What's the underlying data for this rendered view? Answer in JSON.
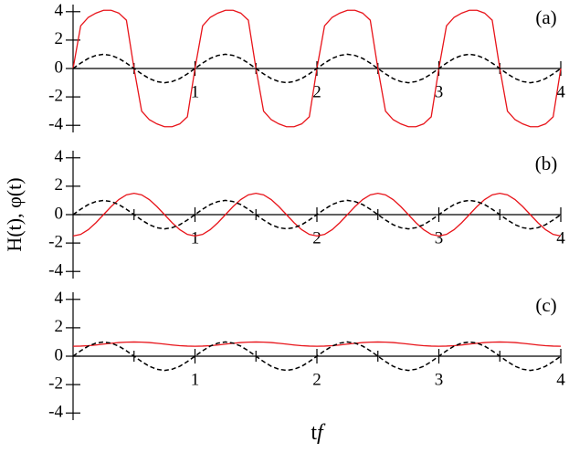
{
  "figure": {
    "ylabel": "H(t), φ(t)",
    "xlabel": [
      "t",
      "f"
    ]
  },
  "chart_data": [
    {
      "type": "line",
      "panel_label": "(a)",
      "x": [
        0,
        0.0625,
        0.125,
        0.1875,
        0.25,
        0.3125,
        0.375,
        0.4375,
        0.5,
        0.5625,
        0.625,
        0.6875,
        0.75,
        0.8125,
        0.875,
        0.9375,
        1,
        1.0625,
        1.125,
        1.1875,
        1.25,
        1.3125,
        1.375,
        1.4375,
        1.5,
        1.5625,
        1.625,
        1.6875,
        1.75,
        1.8125,
        1.875,
        1.9375,
        2,
        2.0625,
        2.125,
        2.1875,
        2.25,
        2.3125,
        2.375,
        2.4375,
        2.5,
        2.5625,
        2.625,
        2.6875,
        2.75,
        2.8125,
        2.875,
        2.9375,
        3,
        3.0625,
        3.125,
        3.1875,
        3.25,
        3.3125,
        3.375,
        3.4375,
        3.5,
        3.5625,
        3.625,
        3.6875,
        3.75,
        3.8125,
        3.875,
        3.9375,
        4
      ],
      "series": [
        {
          "color": "#e8141a",
          "dash": false,
          "values": [
            0,
            3.0,
            3.6,
            3.9,
            4.1,
            4.1,
            3.9,
            3.4,
            0,
            -3.0,
            -3.6,
            -3.9,
            -4.1,
            -4.1,
            -3.9,
            -3.4,
            0,
            3.0,
            3.6,
            3.9,
            4.1,
            4.1,
            3.9,
            3.4,
            0,
            -3.0,
            -3.6,
            -3.9,
            -4.1,
            -4.1,
            -3.9,
            -3.4,
            0,
            3.0,
            3.6,
            3.9,
            4.1,
            4.1,
            3.9,
            3.4,
            0,
            -3.0,
            -3.6,
            -3.9,
            -4.1,
            -4.1,
            -3.9,
            -3.4,
            0,
            3.0,
            3.6,
            3.9,
            4.1,
            4.1,
            3.9,
            3.4,
            0,
            -3.0,
            -3.6,
            -3.9,
            -4.1,
            -4.1,
            -3.9,
            -3.4,
            0
          ]
        },
        {
          "color": "#000000",
          "dash": true,
          "values": [
            0,
            0.38,
            0.71,
            0.92,
            1,
            0.92,
            0.71,
            0.38,
            0,
            -0.38,
            -0.71,
            -0.92,
            -1,
            -0.92,
            -0.71,
            -0.38,
            0,
            0.38,
            0.71,
            0.92,
            1,
            0.92,
            0.71,
            0.38,
            0,
            -0.38,
            -0.71,
            -0.92,
            -1,
            -0.92,
            -0.71,
            -0.38,
            0,
            0.38,
            0.71,
            0.92,
            1,
            0.92,
            0.71,
            0.38,
            0,
            -0.38,
            -0.71,
            -0.92,
            -1,
            -0.92,
            -0.71,
            -0.38,
            0,
            0.38,
            0.71,
            0.92,
            1,
            0.92,
            0.71,
            0.38,
            0,
            -0.38,
            -0.71,
            -0.92,
            -1,
            -0.92,
            -0.71,
            -0.38,
            0
          ]
        }
      ],
      "xlim": [
        0,
        4
      ],
      "xticks": [
        1,
        2,
        3,
        4
      ],
      "xminorticks": [
        0.5,
        1.5,
        2.5,
        3.5
      ],
      "ylim": [
        -4.5,
        4.5
      ],
      "yticks": [
        -4,
        -2,
        0,
        2,
        4
      ]
    },
    {
      "type": "line",
      "panel_label": "(b)",
      "x": [
        0,
        0.0625,
        0.125,
        0.1875,
        0.25,
        0.3125,
        0.375,
        0.4375,
        0.5,
        0.5625,
        0.625,
        0.6875,
        0.75,
        0.8125,
        0.875,
        0.9375,
        1,
        1.0625,
        1.125,
        1.1875,
        1.25,
        1.3125,
        1.375,
        1.4375,
        1.5,
        1.5625,
        1.625,
        1.6875,
        1.75,
        1.8125,
        1.875,
        1.9375,
        2,
        2.0625,
        2.125,
        2.1875,
        2.25,
        2.3125,
        2.375,
        2.4375,
        2.5,
        2.5625,
        2.625,
        2.6875,
        2.75,
        2.8125,
        2.875,
        2.9375,
        3,
        3.0625,
        3.125,
        3.1875,
        3.25,
        3.3125,
        3.375,
        3.4375,
        3.5,
        3.5625,
        3.625,
        3.6875,
        3.75,
        3.8125,
        3.875,
        3.9375,
        4
      ],
      "series": [
        {
          "color": "#e8141a",
          "dash": false,
          "values": [
            -1.5,
            -1.39,
            -1.06,
            -0.57,
            0,
            0.57,
            1.06,
            1.39,
            1.5,
            1.39,
            1.06,
            0.57,
            0,
            -0.57,
            -1.06,
            -1.39,
            -1.5,
            -1.39,
            -1.06,
            -0.57,
            0,
            0.57,
            1.06,
            1.39,
            1.5,
            1.39,
            1.06,
            0.57,
            0,
            -0.57,
            -1.06,
            -1.39,
            -1.5,
            -1.39,
            -1.06,
            -0.57,
            0,
            0.57,
            1.06,
            1.39,
            1.5,
            1.39,
            1.06,
            0.57,
            0,
            -0.57,
            -1.06,
            -1.39,
            -1.5,
            -1.39,
            -1.06,
            -0.57,
            0,
            0.57,
            1.06,
            1.39,
            1.5,
            1.39,
            1.06,
            0.57,
            0,
            -0.57,
            -1.06,
            -1.39,
            -1.5
          ]
        },
        {
          "color": "#000000",
          "dash": true,
          "values": [
            0,
            0.38,
            0.71,
            0.92,
            1,
            0.92,
            0.71,
            0.38,
            0,
            -0.38,
            -0.71,
            -0.92,
            -1,
            -0.92,
            -0.71,
            -0.38,
            0,
            0.38,
            0.71,
            0.92,
            1,
            0.92,
            0.71,
            0.38,
            0,
            -0.38,
            -0.71,
            -0.92,
            -1,
            -0.92,
            -0.71,
            -0.38,
            0,
            0.38,
            0.71,
            0.92,
            1,
            0.92,
            0.71,
            0.38,
            0,
            -0.38,
            -0.71,
            -0.92,
            -1,
            -0.92,
            -0.71,
            -0.38,
            0,
            0.38,
            0.71,
            0.92,
            1,
            0.92,
            0.71,
            0.38,
            0,
            -0.38,
            -0.71,
            -0.92,
            -1,
            -0.92,
            -0.71,
            -0.38,
            0
          ]
        }
      ],
      "xlim": [
        0,
        4
      ],
      "xticks": [
        1,
        2,
        3,
        4
      ],
      "xminorticks": [
        0.5,
        1.5,
        2.5,
        3.5
      ],
      "ylim": [
        -4.5,
        4.5
      ],
      "yticks": [
        -4,
        -2,
        0,
        2,
        4
      ]
    },
    {
      "type": "line",
      "panel_label": "(c)",
      "x": [
        0,
        0.0625,
        0.125,
        0.1875,
        0.25,
        0.3125,
        0.375,
        0.4375,
        0.5,
        0.5625,
        0.625,
        0.6875,
        0.75,
        0.8125,
        0.875,
        0.9375,
        1,
        1.0625,
        1.125,
        1.1875,
        1.25,
        1.3125,
        1.375,
        1.4375,
        1.5,
        1.5625,
        1.625,
        1.6875,
        1.75,
        1.8125,
        1.875,
        1.9375,
        2,
        2.0625,
        2.125,
        2.1875,
        2.25,
        2.3125,
        2.375,
        2.4375,
        2.5,
        2.5625,
        2.625,
        2.6875,
        2.75,
        2.8125,
        2.875,
        2.9375,
        3,
        3.0625,
        3.125,
        3.1875,
        3.25,
        3.3125,
        3.375,
        3.4375,
        3.5,
        3.5625,
        3.625,
        3.6875,
        3.75,
        3.8125,
        3.875,
        3.9375,
        4
      ],
      "series": [
        {
          "color": "#e8141a",
          "dash": false,
          "values": [
            0.7,
            0.71,
            0.74,
            0.79,
            0.85,
            0.91,
            0.96,
            0.99,
            1.0,
            0.99,
            0.96,
            0.91,
            0.85,
            0.79,
            0.74,
            0.71,
            0.7,
            0.71,
            0.74,
            0.79,
            0.85,
            0.91,
            0.96,
            0.99,
            1.0,
            0.99,
            0.96,
            0.91,
            0.85,
            0.79,
            0.74,
            0.71,
            0.7,
            0.71,
            0.74,
            0.79,
            0.85,
            0.91,
            0.96,
            0.99,
            1.0,
            0.99,
            0.96,
            0.91,
            0.85,
            0.79,
            0.74,
            0.71,
            0.7,
            0.71,
            0.74,
            0.79,
            0.85,
            0.91,
            0.96,
            0.99,
            1.0,
            0.99,
            0.96,
            0.91,
            0.85,
            0.79,
            0.74,
            0.71,
            0.7
          ]
        },
        {
          "color": "#000000",
          "dash": true,
          "values": [
            0,
            0.38,
            0.71,
            0.92,
            1,
            0.92,
            0.71,
            0.38,
            0,
            -0.38,
            -0.71,
            -0.92,
            -1,
            -0.92,
            -0.71,
            -0.38,
            0,
            0.38,
            0.71,
            0.92,
            1,
            0.92,
            0.71,
            0.38,
            0,
            -0.38,
            -0.71,
            -0.92,
            -1,
            -0.92,
            -0.71,
            -0.38,
            0,
            0.38,
            0.71,
            0.92,
            1,
            0.92,
            0.71,
            0.38,
            0,
            -0.38,
            -0.71,
            -0.92,
            -1,
            -0.92,
            -0.71,
            -0.38,
            0,
            0.38,
            0.71,
            0.92,
            1,
            0.92,
            0.71,
            0.38,
            0,
            -0.38,
            -0.71,
            -0.92,
            -1,
            -0.92,
            -0.71,
            -0.38,
            0
          ]
        }
      ],
      "xlim": [
        0,
        4
      ],
      "xticks": [
        1,
        2,
        3,
        4
      ],
      "xminorticks": [
        0.5,
        1.5,
        2.5,
        3.5
      ],
      "ylim": [
        -4.5,
        4.5
      ],
      "yticks": [
        -4,
        -2,
        0,
        2,
        4
      ]
    }
  ]
}
